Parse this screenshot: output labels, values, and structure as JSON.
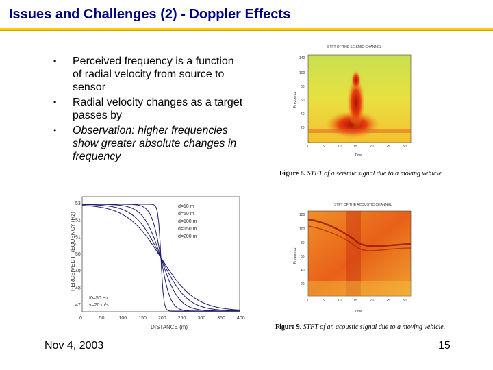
{
  "slide": {
    "title": "Issues and Challenges (2) - Doppler Effects",
    "bullets": [
      "Perceived frequency is a function of radial velocity from source to sensor",
      "Radial velocity changes as a target passes by",
      "Observation: higher frequencies show greater absolute changes in frequency"
    ],
    "footer_date": "Nov 4, 2003",
    "page_number": "15"
  },
  "figures": {
    "doppler_plot": {
      "ylabel": "PERCEIVED FREQUENCY (Hz)",
      "xlabel": "DISTANCE (m)",
      "x_ticks": [
        "0",
        "50",
        "100",
        "150",
        "200",
        "250",
        "300",
        "350",
        "400"
      ],
      "y_ticks": [
        "53",
        "52",
        "51",
        "50",
        "49",
        "48",
        "47"
      ],
      "legend": [
        "d=10 m",
        "d=50 m",
        "d=100 m",
        "d=150 m",
        "d=200 m"
      ],
      "params": [
        "f0=50 Hz",
        "v=20 m/s"
      ]
    },
    "seismic": {
      "title": "STFT OF THE SEISMIC CHANNEL",
      "ylabel": "Frequency",
      "xlabel": "Time",
      "x_ticks": [
        "0",
        "5",
        "10",
        "15",
        "20",
        "25",
        "30"
      ],
      "y_ticks": [
        "140",
        "100",
        "80",
        "60",
        "40",
        "20"
      ],
      "caption_bold": "Figure 8.",
      "caption_italic": "STFT of a seismic signal due to a moving vehicle."
    },
    "acoustic": {
      "title": "STFT OF THE ACOUSTIC CHANNEL",
      "ylabel": "Frequency",
      "xlabel": "Time",
      "x_ticks": [
        "0",
        "5",
        "10",
        "15",
        "20",
        "25",
        "30"
      ],
      "y_ticks": [
        "120",
        "100",
        "80",
        "60",
        "40",
        "20"
      ],
      "caption_bold": "Figure 9.",
      "caption_italic": "STFT of an acoustic signal due to a moving vehicle."
    }
  }
}
